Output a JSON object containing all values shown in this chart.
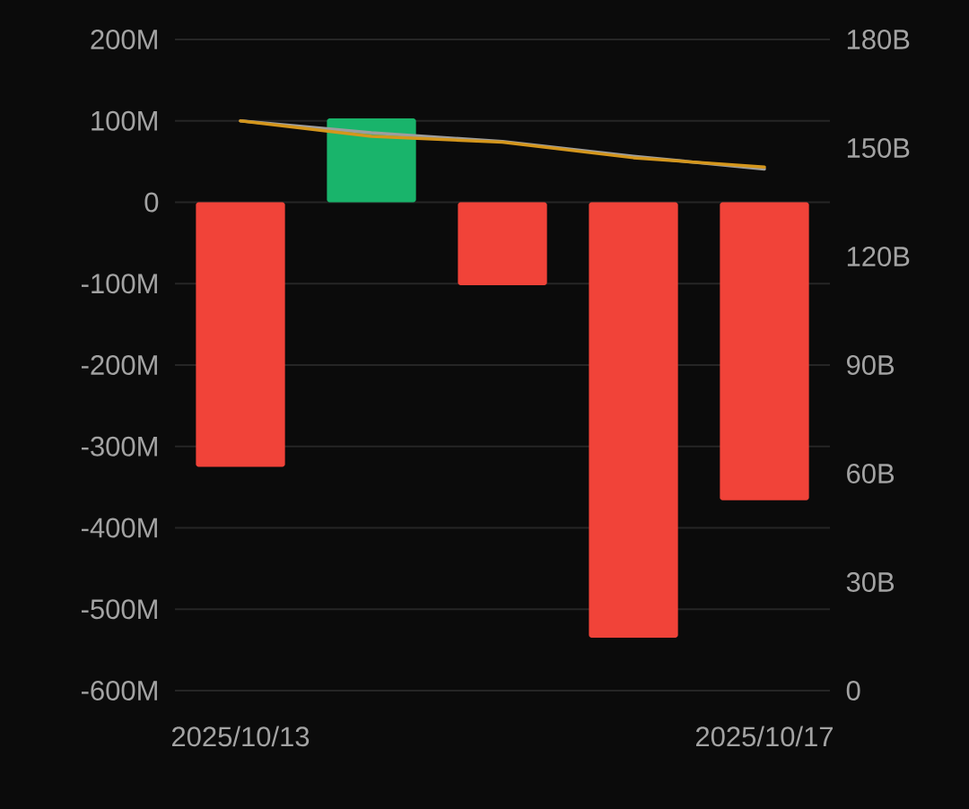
{
  "chart_data": {
    "type": "bar",
    "categories": [
      "2025/10/13",
      null,
      null,
      null,
      "2025/10/17"
    ],
    "series": [
      {
        "colors": [
          "#f14339",
          "#19b46b",
          "#f14339",
          "#f14339",
          "#f14339"
        ],
        "values": [
          -325,
          103,
          -102,
          -535,
          -366
        ]
      },
      {
        "type": "line",
        "axis": "y2",
        "color": "#9e9e9e",
        "values": [
          157.5,
          154.2,
          151.8,
          147.7,
          144.2
        ]
      },
      {
        "type": "line",
        "axis": "y2",
        "color": "#d4961c",
        "values": [
          157.5,
          153.2,
          151.6,
          147.3,
          144.7
        ]
      }
    ],
    "ylim": [
      -600,
      200
    ],
    "yticks": [
      {
        "value": -600,
        "label": "-600M"
      },
      {
        "value": -500,
        "label": "-500M"
      },
      {
        "value": -400,
        "label": "-400M"
      },
      {
        "value": -300,
        "label": "-300M"
      },
      {
        "value": -200,
        "label": "-200M"
      },
      {
        "value": -100,
        "label": "-100M"
      },
      0,
      {
        "value": 100,
        "label": "100M"
      },
      {
        "value": 200,
        "label": "200M"
      }
    ],
    "y2lim": [
      0,
      180
    ],
    "y2ticks": [
      0,
      {
        "value": 30,
        "label": "30B"
      },
      {
        "value": 60,
        "label": "60B"
      },
      {
        "value": 90,
        "label": "90B"
      },
      {
        "value": 120,
        "label": "120B"
      },
      {
        "value": 150,
        "label": "150B"
      },
      {
        "value": 180,
        "label": "180B"
      }
    ],
    "grid": "y",
    "legend": false,
    "marker": "none",
    "line_style": "solid"
  }
}
